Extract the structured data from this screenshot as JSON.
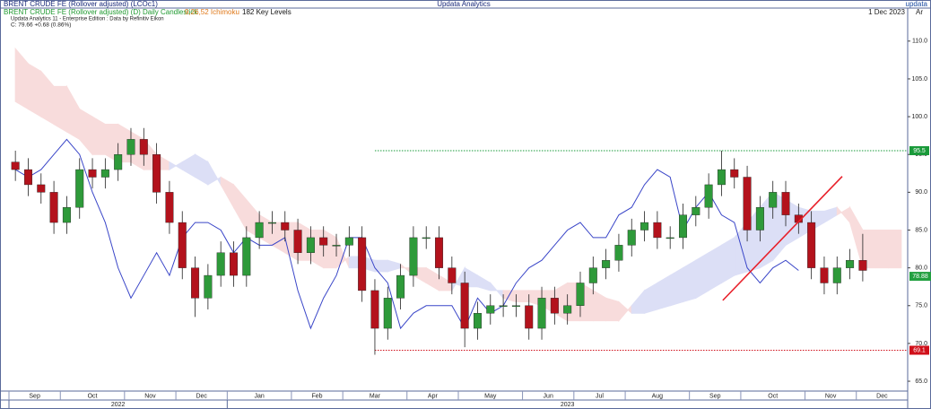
{
  "header": {
    "title": "BRENT CRUDE FE (Rollover adjusted) (LCOc1)",
    "app": "Updata Analytics",
    "logo": "updata",
    "study": "BRENT CRUDE FE (Rollover adjusted) (D) Daily Candlestick",
    "indicator": "9,26,52 Ichimoku",
    "levels": "182 Key Levels",
    "date": "1 Dec 2023",
    "axis_tag": "Ar",
    "edition": "Updata Analytics 11 - Enterprise Edition : Data by Refinitiv Eikon",
    "quote": "C: 79.66 +0.68 (0.86%)"
  },
  "chart_data": {
    "type": "candlestick",
    "categories": [
      "Sep",
      null,
      null,
      null,
      "Oct",
      null,
      null,
      null,
      null,
      "Nov",
      null,
      null,
      null,
      "Dec",
      null,
      null,
      null,
      "Jan",
      null,
      null,
      null,
      null,
      "Feb",
      null,
      null,
      null,
      "Mar",
      null,
      null,
      null,
      null,
      "Apr",
      null,
      null,
      null,
      "May",
      null,
      null,
      null,
      null,
      "Jun",
      null,
      null,
      null,
      "Jul",
      null,
      null,
      null,
      "Aug",
      null,
      null,
      null,
      null,
      "Sep",
      null,
      null,
      null,
      "Oct",
      null,
      null,
      null,
      null,
      "Nov",
      null,
      null,
      null,
      "Dec",
      null,
      null,
      null
    ],
    "years": [
      {
        "label": "2022",
        "start": 0
      },
      {
        "label": "2023",
        "start": 17
      }
    ],
    "open": [
      94,
      93,
      91,
      90,
      86,
      88,
      93,
      92,
      93,
      95,
      97,
      95,
      90,
      86,
      80,
      76,
      79,
      82,
      79,
      84,
      86,
      86,
      85,
      82,
      84,
      83,
      83,
      84,
      77,
      72,
      76,
      79,
      84,
      84,
      80,
      78,
      72,
      74,
      75,
      75,
      75,
      72,
      76,
      74,
      75,
      78,
      80,
      81,
      83,
      85,
      86,
      84,
      84,
      87,
      88,
      91,
      93,
      92,
      85,
      88,
      90,
      87,
      86,
      80,
      78,
      80,
      81,
      null,
      null,
      null
    ],
    "high": [
      95.5,
      94.5,
      92.5,
      91.5,
      89.5,
      94.5,
      94.5,
      94.5,
      96.5,
      98.5,
      98.5,
      96.5,
      91.5,
      87.5,
      81.5,
      80.5,
      83.5,
      83.5,
      85.5,
      87.5,
      87.5,
      87.5,
      86.5,
      85.5,
      85.5,
      84.5,
      85.5,
      85.5,
      78.5,
      77.5,
      80.5,
      85.5,
      85.5,
      85.5,
      81.5,
      79.5,
      75.5,
      76.5,
      76.5,
      76.5,
      76.5,
      77.5,
      77.5,
      76.5,
      79.5,
      81.5,
      82.5,
      84.5,
      86.5,
      87.5,
      87.5,
      85.5,
      88.5,
      89.5,
      92.5,
      95.5,
      94.5,
      93.5,
      89.5,
      91.5,
      91.5,
      88.5,
      87.5,
      81.5,
      81.5,
      82.5,
      84.5,
      null,
      null,
      null
    ],
    "low": [
      91.5,
      89.5,
      88.5,
      84.5,
      84.5,
      86.5,
      90.5,
      90.5,
      91.5,
      93.5,
      93.5,
      88.5,
      84.5,
      78.5,
      73.5,
      74.5,
      77.5,
      77.5,
      77.5,
      82.5,
      84.5,
      83.5,
      80.5,
      80.5,
      81.5,
      81.5,
      81.5,
      75.5,
      68.5,
      70.5,
      74.5,
      77.5,
      82.5,
      78.5,
      76.5,
      69.5,
      70.5,
      72.5,
      73.5,
      73.5,
      70.5,
      70.5,
      72.5,
      72.5,
      73.5,
      76.5,
      78.5,
      79.5,
      81.5,
      83.5,
      82.5,
      82.5,
      82.5,
      85.5,
      86.5,
      89.5,
      90.5,
      83.5,
      83.5,
      86.5,
      85.5,
      84.5,
      78.5,
      76.5,
      76.5,
      78.5,
      78.2,
      null,
      null,
      null
    ],
    "close": [
      93,
      91,
      90,
      86,
      88,
      93,
      92,
      93,
      95,
      97,
      95,
      90,
      86,
      80,
      76,
      79,
      82,
      79,
      84,
      86,
      86,
      85,
      82,
      84,
      83,
      83,
      84,
      77,
      72,
      76,
      79,
      84,
      84,
      80,
      78,
      72,
      74,
      75,
      75,
      75,
      72,
      76,
      74,
      75,
      78,
      80,
      81,
      83,
      85,
      86,
      84,
      84,
      87,
      88,
      91,
      93,
      92,
      85,
      88,
      90,
      87,
      86,
      80,
      78,
      80,
      81,
      79.66,
      null,
      null,
      null
    ],
    "up_color": "#2e9a3a",
    "down_color": "#b3121c",
    "span_a": [
      102,
      101,
      100,
      99,
      98,
      97,
      95,
      95,
      94,
      94,
      93,
      93,
      93,
      94,
      95,
      94,
      91,
      88,
      85,
      84,
      83,
      82,
      81,
      81,
      80,
      80,
      81.5,
      81.5,
      81,
      81,
      80.5,
      79,
      78,
      77,
      77,
      80,
      79,
      78,
      76,
      75.5,
      75.5,
      75,
      74,
      73,
      73,
      73,
      73,
      73,
      75,
      77,
      78,
      79,
      80,
      81,
      82,
      83,
      84,
      86,
      88,
      90,
      89,
      88,
      87.5,
      87.5,
      88,
      86,
      80,
      80,
      80,
      80
    ],
    "span_b": [
      109,
      107,
      106,
      104,
      104,
      101,
      100,
      99,
      99,
      98,
      97,
      95,
      94,
      93,
      92,
      91,
      92,
      91,
      89,
      87,
      86,
      86,
      86,
      85,
      85,
      84,
      80,
      80,
      79.5,
      79.5,
      80,
      80,
      80,
      79,
      78,
      77.5,
      77.5,
      77,
      77,
      77,
      77,
      77,
      77,
      78,
      78,
      77,
      76,
      75.5,
      74,
      74,
      74.5,
      75,
      75.5,
      76,
      77,
      78,
      79,
      79.5,
      80,
      81,
      83,
      84,
      85,
      86,
      87,
      88,
      85,
      85,
      85,
      85
    ],
    "cloud_colors": {
      "bull": "#dcdff6",
      "bear": "#f8dcdc"
    },
    "lagging": [
      93,
      92,
      93,
      95,
      97,
      95,
      90,
      86,
      80,
      76,
      79,
      82,
      79,
      84,
      86,
      86,
      85,
      82,
      84,
      83,
      83,
      84,
      77,
      72,
      76,
      79,
      84,
      84,
      80,
      78,
      72,
      74,
      75,
      75,
      75,
      72,
      76,
      74,
      75,
      78,
      80,
      81,
      83,
      85,
      86,
      84,
      84,
      87,
      88,
      91,
      93,
      92,
      85,
      88,
      90,
      87,
      86,
      80,
      78,
      80,
      81,
      79.66,
      null,
      null,
      null,
      null,
      null,
      null,
      null,
      null
    ],
    "lagging_color": "#3a46c8",
    "key_levels": [
      {
        "value": 95.5,
        "color": "#1a9a3a"
      },
      {
        "value": 69.1,
        "color": "#d0101a"
      }
    ],
    "last_price": {
      "value": 78.88,
      "color": "#22a040"
    },
    "trendline": {
      "values": [
        75.7,
        92.1
      ],
      "color": "#e8202a"
    },
    "ylim": [
      63.7,
      113.3
    ],
    "yticks": [
      {
        "value": 65,
        "label": "65.0"
      },
      {
        "value": 70,
        "label": "70.0"
      },
      {
        "value": 75,
        "label": "75.0"
      },
      {
        "value": 80,
        "label": "80.0"
      },
      {
        "value": 85,
        "label": "85.0"
      },
      {
        "value": 90,
        "label": "90.0"
      },
      {
        "value": 95,
        "label": "95.0"
      },
      {
        "value": 100,
        "label": "100.0"
      },
      {
        "value": 105,
        "label": "105.0"
      },
      {
        "value": 110,
        "label": "110.0"
      }
    ]
  }
}
